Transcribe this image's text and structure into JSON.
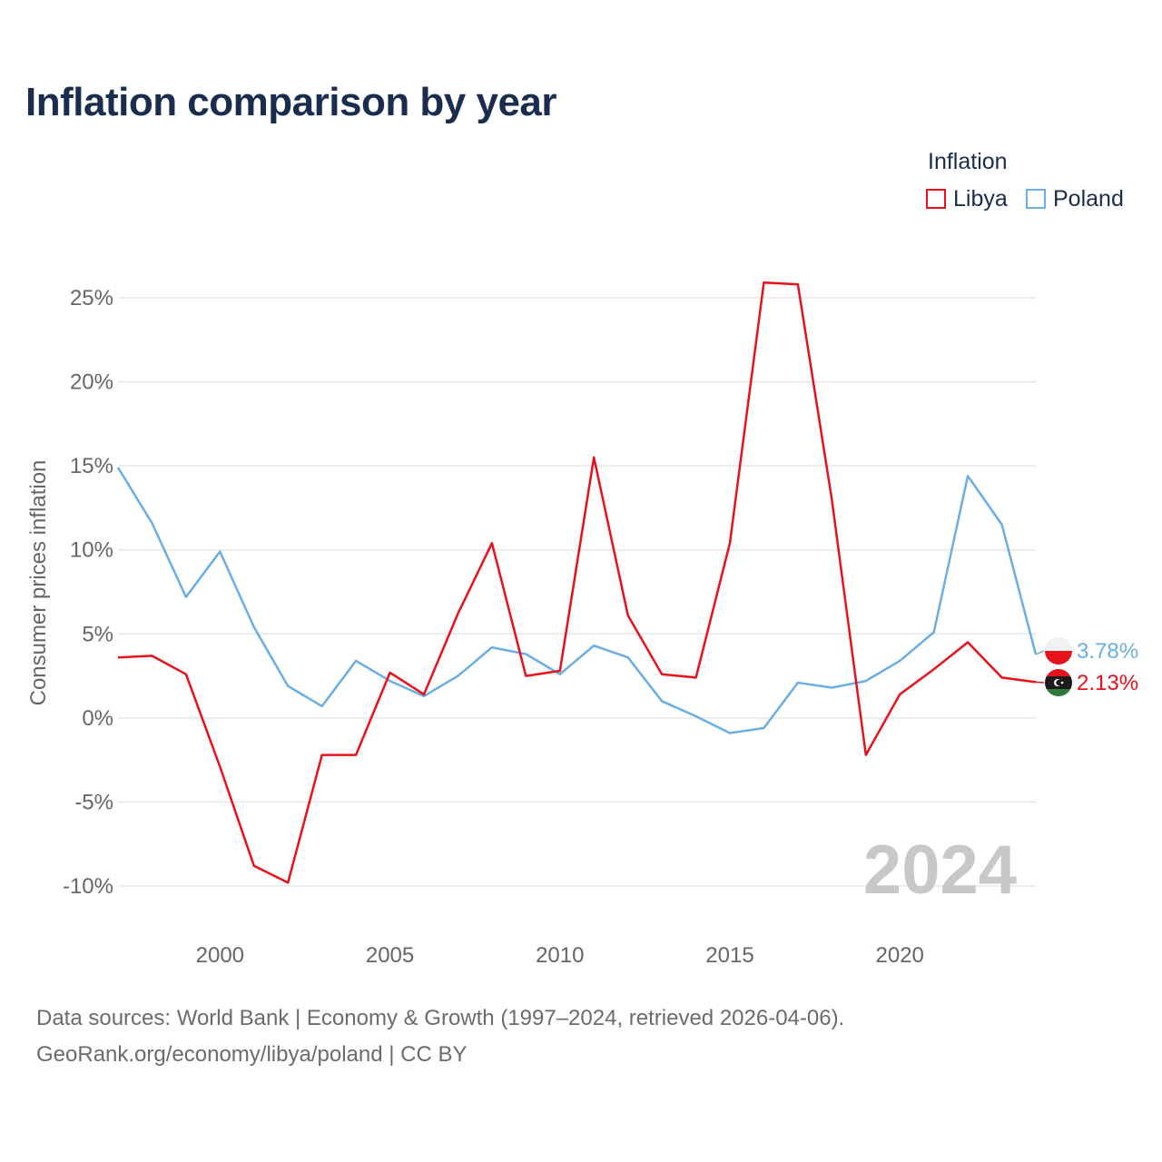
{
  "chart_data": {
    "type": "line",
    "title": "Inflation comparison by year",
    "legend_title": "Inflation",
    "ylabel": "Consumer prices inflation",
    "xlabel": "",
    "x_range": [
      1997,
      2024
    ],
    "ylim": [
      -10,
      25
    ],
    "y_ticks": [
      25,
      20,
      15,
      10,
      5,
      0,
      -5,
      -10
    ],
    "y_tick_labels": [
      "25%",
      "20%",
      "15%",
      "10%",
      "5%",
      "0%",
      "-5%",
      "-10%"
    ],
    "x_ticks": [
      2000,
      2005,
      2010,
      2015,
      2020
    ],
    "x_tick_labels": [
      "2000",
      "2005",
      "2010",
      "2015",
      "2020"
    ],
    "year_watermark": "2024",
    "x": [
      1997,
      1998,
      1999,
      2000,
      2001,
      2002,
      2003,
      2004,
      2005,
      2006,
      2007,
      2008,
      2009,
      2010,
      2011,
      2012,
      2013,
      2014,
      2015,
      2016,
      2017,
      2018,
      2019,
      2020,
      2021,
      2022,
      2023,
      2024
    ],
    "series": [
      {
        "name": "Libya",
        "color": "#e8101a",
        "values": [
          3.6,
          3.7,
          2.6,
          -2.9,
          -8.8,
          -9.8,
          -2.2,
          -2.2,
          2.7,
          1.4,
          6.2,
          10.4,
          2.5,
          2.8,
          15.5,
          6.1,
          2.6,
          2.4,
          10.4,
          25.9,
          25.8,
          13.0,
          -2.2,
          1.4,
          2.9,
          4.5,
          2.4,
          2.13
        ],
        "end_label": "2.13%",
        "flag_icon": "libya-flag-icon"
      },
      {
        "name": "Poland",
        "color": "#6aaee3",
        "values": [
          14.9,
          11.6,
          7.2,
          9.9,
          5.4,
          1.9,
          0.7,
          3.4,
          2.2,
          1.3,
          2.5,
          4.2,
          3.8,
          2.6,
          4.3,
          3.6,
          1.0,
          0.1,
          -0.9,
          -0.6,
          2.1,
          1.8,
          2.2,
          3.4,
          5.1,
          14.4,
          11.5,
          3.78
        ],
        "end_label": "3.78%",
        "flag_icon": "poland-flag-icon"
      }
    ],
    "grid": true,
    "legend_position": "top-right"
  },
  "sources": {
    "line1": "Data sources: World Bank | Economy & Growth (1997–2024, retrieved 2026-04-06).",
    "line2": "GeoRank.org/economy/libya/poland | CC BY"
  }
}
